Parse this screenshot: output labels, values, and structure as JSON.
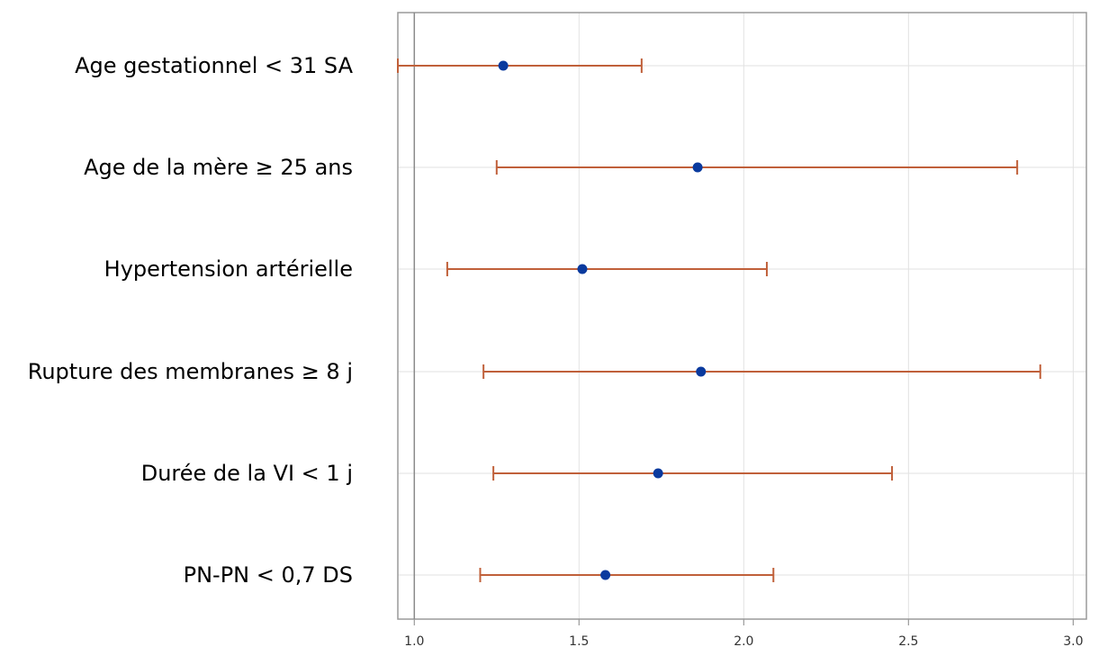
{
  "chart_data": {
    "type": "forest",
    "title": "",
    "xlabel": "",
    "ylabel": "",
    "xlim": [
      0.95,
      3.04
    ],
    "x_ticks": [
      "1.0",
      "1.5",
      "2.0",
      "2.5",
      "3.0"
    ],
    "x_tick_values": [
      1.0,
      1.5,
      2.0,
      2.5,
      3.0
    ],
    "reference_line": 1.0,
    "grid": true,
    "rows": [
      {
        "label": "Age gestationnel < 31 SA",
        "estimate": 1.27,
        "ci_low": 0.95,
        "ci_high": 1.69
      },
      {
        "label": "Age de la mère ≥ 25 ans",
        "estimate": 1.86,
        "ci_low": 1.25,
        "ci_high": 2.83
      },
      {
        "label": "Hypertension artérielle",
        "estimate": 1.51,
        "ci_low": 1.1,
        "ci_high": 2.07
      },
      {
        "label": "Rupture des membranes ≥ 8 j",
        "estimate": 1.87,
        "ci_low": 1.21,
        "ci_high": 2.9
      },
      {
        "label": "Durée de la VI < 1 j",
        "estimate": 1.74,
        "ci_low": 1.24,
        "ci_high": 2.45
      },
      {
        "label": "PN-PN < 0,7 DS",
        "estimate": 1.58,
        "ci_low": 1.2,
        "ci_high": 2.09
      }
    ],
    "colors": {
      "ci_line": "#c0603a",
      "point": "#0a3a9e",
      "grid": "#e2e2e2",
      "frame": "#9a9a9a",
      "reference": "#8a8a8a"
    }
  }
}
